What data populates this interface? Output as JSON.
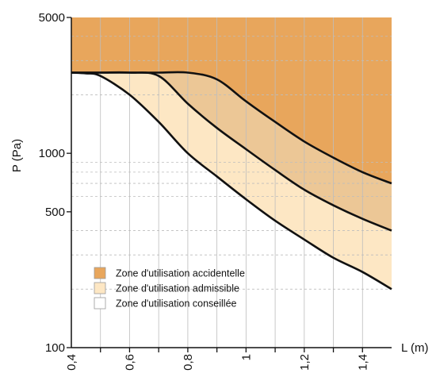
{
  "chart_data": {
    "type": "area",
    "title": "",
    "xlabel": "L (m)",
    "ylabel": "P (Pa)",
    "xlim": [
      0.4,
      1.5
    ],
    "ylim": [
      100,
      5000
    ],
    "yscale": "log",
    "grid": true,
    "x_tick_labels": [
      "0,4",
      "0,6",
      "0,8",
      "1",
      "1,2",
      "1,4"
    ],
    "x_tick_values": [
      0.4,
      0.6,
      0.8,
      1.0,
      1.2,
      1.4
    ],
    "y_tick_labels": [
      "100",
      "500",
      "1000",
      "5000"
    ],
    "y_tick_values": [
      100,
      500,
      1000,
      5000
    ],
    "series": [
      {
        "name": "Zone d'utilisation accidentelle",
        "x": [
          0.4,
          0.5,
          0.6,
          0.7,
          0.8,
          0.9,
          1.0,
          1.1,
          1.2,
          1.3,
          1.4,
          1.5
        ],
        "values": [
          2600,
          2600,
          2600,
          2600,
          2600,
          2400,
          1850,
          1450,
          1150,
          950,
          800,
          700
        ]
      },
      {
        "name": "Zone d'utilisation admissible",
        "x": [
          0.4,
          0.5,
          0.6,
          0.7,
          0.8,
          0.9,
          1.0,
          1.1,
          1.2,
          1.3,
          1.4,
          1.5
        ],
        "values": [
          2600,
          2600,
          2600,
          2500,
          1800,
          1350,
          1050,
          820,
          650,
          540,
          460,
          400
        ]
      },
      {
        "name": "Zone d'utilisation conseillée",
        "x": [
          0.4,
          0.45,
          0.5,
          0.6,
          0.7,
          0.8,
          0.9,
          1.0,
          1.1,
          1.2,
          1.3,
          1.4,
          1.5
        ],
        "values": [
          2600,
          2580,
          2500,
          2000,
          1450,
          1000,
          760,
          580,
          450,
          360,
          290,
          245,
          200
        ]
      }
    ],
    "legend_position": "bottom-left",
    "legend": [
      {
        "label": "Zone d'utilisation accidentelle",
        "color": "#e8a65c"
      },
      {
        "label": "Zone d'utilisation admissible",
        "color": "#fde7c4"
      },
      {
        "label": "Zone d'utilisation conseillée",
        "color": "#ffffff"
      }
    ],
    "colors": {
      "zone_accidental": "#e8a65c",
      "zone_accidental_overlap": "#ecc796",
      "zone_admissible": "#fde7c4",
      "curve": "#111111",
      "grid": "#bdbdbd"
    }
  }
}
